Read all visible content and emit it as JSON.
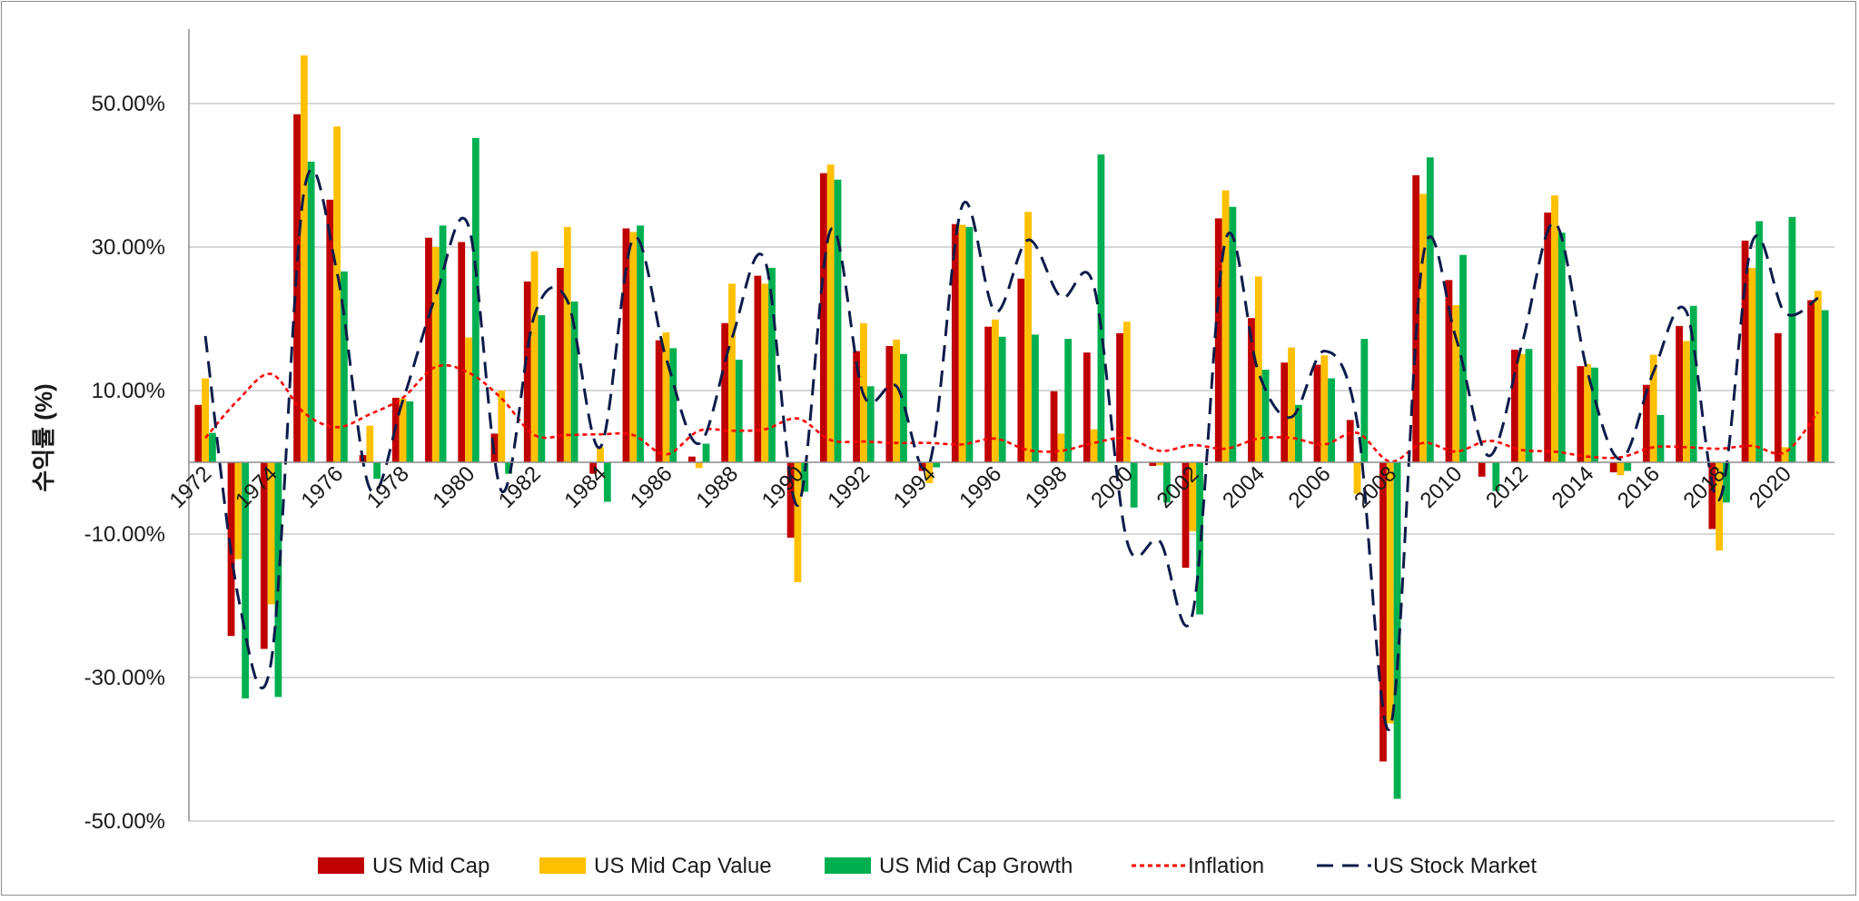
{
  "chart_data": {
    "type": "bar",
    "title": "",
    "xlabel": "",
    "ylabel": "수익률 (%)",
    "ylim": [
      -50,
      60
    ],
    "yticks": [
      50,
      30,
      10,
      -10,
      -30,
      -50
    ],
    "ytick_labels": [
      "50.00%",
      "30.00%",
      "10.00%",
      "-10.00%",
      "-30.00%",
      "-50.00%"
    ],
    "grid": true,
    "legend_position": "bottom",
    "categories": [
      1972,
      1973,
      1974,
      1975,
      1976,
      1977,
      1978,
      1979,
      1980,
      1981,
      1982,
      1983,
      1984,
      1985,
      1986,
      1987,
      1988,
      1989,
      1990,
      1991,
      1992,
      1993,
      1994,
      1995,
      1996,
      1997,
      1998,
      1999,
      2000,
      2001,
      2002,
      2003,
      2004,
      2005,
      2006,
      2007,
      2008,
      2009,
      2010,
      2011,
      2012,
      2013,
      2014,
      2015,
      2016,
      2017,
      2018,
      2019,
      2020,
      2021
    ],
    "xtick_labels": [
      "1972",
      "1974",
      "1976",
      "1978",
      "1980",
      "1982",
      "1984",
      "1986",
      "1988",
      "1990",
      "1992",
      "1994",
      "1996",
      "1998",
      "2000",
      "2002",
      "2004",
      "2006",
      "2008",
      "2010",
      "2012",
      "2014",
      "2016",
      "2018",
      "2020"
    ],
    "series": [
      {
        "name": "US Mid Cap",
        "kind": "bar",
        "color": "#c00000",
        "values": [
          8.0,
          -24.2,
          -26.0,
          48.5,
          36.6,
          1.0,
          9.0,
          31.3,
          30.7,
          4.0,
          25.2,
          27.1,
          -1.6,
          32.6,
          17.0,
          0.8,
          19.4,
          26.0,
          -10.5,
          40.3,
          15.5,
          16.2,
          -1.2,
          33.2,
          18.9,
          25.6,
          9.9,
          15.3,
          18.0,
          -0.5,
          -14.7,
          34.0,
          20.1,
          13.9,
          13.6,
          5.9,
          -41.7,
          40.0,
          25.4,
          -2.0,
          15.7,
          34.8,
          13.4,
          -1.4,
          10.8,
          19.0,
          -9.3,
          30.9,
          18.0,
          22.6
        ]
      },
      {
        "name": "US Mid Cap Value",
        "kind": "bar",
        "color": "#ffc000",
        "values": [
          11.7,
          -13.5,
          -19.8,
          56.7,
          46.8,
          5.1,
          8.9,
          30.0,
          17.4,
          10.0,
          29.4,
          32.8,
          2.1,
          32.1,
          18.1,
          -0.8,
          24.9,
          24.9,
          -16.7,
          41.5,
          19.4,
          17.1,
          -2.9,
          33.1,
          19.9,
          34.9,
          4.0,
          4.6,
          19.6,
          -0.4,
          -9.6,
          37.9,
          25.9,
          16.0,
          14.9,
          -4.4,
          -36.4,
          37.4,
          21.9,
          0.1,
          15.1,
          37.2,
          13.7,
          -1.8,
          15.0,
          16.9,
          -12.3,
          27.1,
          2.1,
          23.9
        ]
      },
      {
        "name": "US Mid Cap Growth",
        "kind": "bar",
        "color": "#00b050",
        "values": [
          4.1,
          -32.9,
          -32.7,
          41.9,
          26.6,
          -2.3,
          8.5,
          33.0,
          45.2,
          -1.6,
          20.5,
          22.4,
          -5.5,
          33.0,
          15.9,
          2.6,
          14.3,
          27.1,
          -4.1,
          39.4,
          10.6,
          15.1,
          -0.7,
          32.8,
          17.5,
          17.8,
          17.2,
          42.9,
          -6.3,
          -5.6,
          -21.2,
          35.6,
          12.9,
          8.0,
          11.7,
          17.2,
          -46.9,
          42.5,
          28.9,
          -4.0,
          15.8,
          32.0,
          13.2,
          -1.2,
          6.6,
          21.8,
          -5.6,
          33.6,
          34.2,
          21.2
        ]
      },
      {
        "name": "Inflation",
        "kind": "line",
        "style": "dotted",
        "color": "#ff0000",
        "values": [
          3.4,
          8.7,
          12.3,
          6.9,
          4.9,
          6.7,
          9.0,
          13.3,
          12.5,
          8.9,
          3.8,
          3.8,
          3.9,
          3.8,
          1.1,
          4.4,
          4.4,
          4.6,
          6.1,
          3.1,
          2.9,
          2.7,
          2.7,
          2.5,
          3.3,
          1.7,
          1.6,
          2.7,
          3.4,
          1.6,
          2.4,
          1.9,
          3.3,
          3.4,
          2.5,
          4.1,
          0.1,
          2.7,
          1.5,
          3.0,
          1.7,
          1.5,
          0.8,
          0.7,
          2.1,
          2.1,
          1.9,
          2.3,
          1.4,
          7.0
        ]
      },
      {
        "name": "US Stock Market",
        "kind": "line",
        "style": "dashed",
        "color": "#0d1b4a",
        "values": [
          17.6,
          -18.8,
          -27.8,
          37.8,
          26.5,
          -3.7,
          8.6,
          23.2,
          32.9,
          -4.0,
          20.5,
          22.5,
          2.1,
          31.2,
          14.5,
          2.6,
          17.3,
          28.2,
          -6.0,
          32.4,
          9.4,
          10.6,
          -0.2,
          35.8,
          21.0,
          31.0,
          23.0,
          24.5,
          -10.9,
          -11.0,
          -21.0,
          31.0,
          12.5,
          6.3,
          15.5,
          5.6,
          -37.0,
          28.7,
          17.3,
          0.9,
          16.4,
          33.4,
          12.5,
          0.4,
          12.6,
          21.0,
          -5.2,
          30.7,
          20.8,
          22.9
        ]
      }
    ]
  }
}
